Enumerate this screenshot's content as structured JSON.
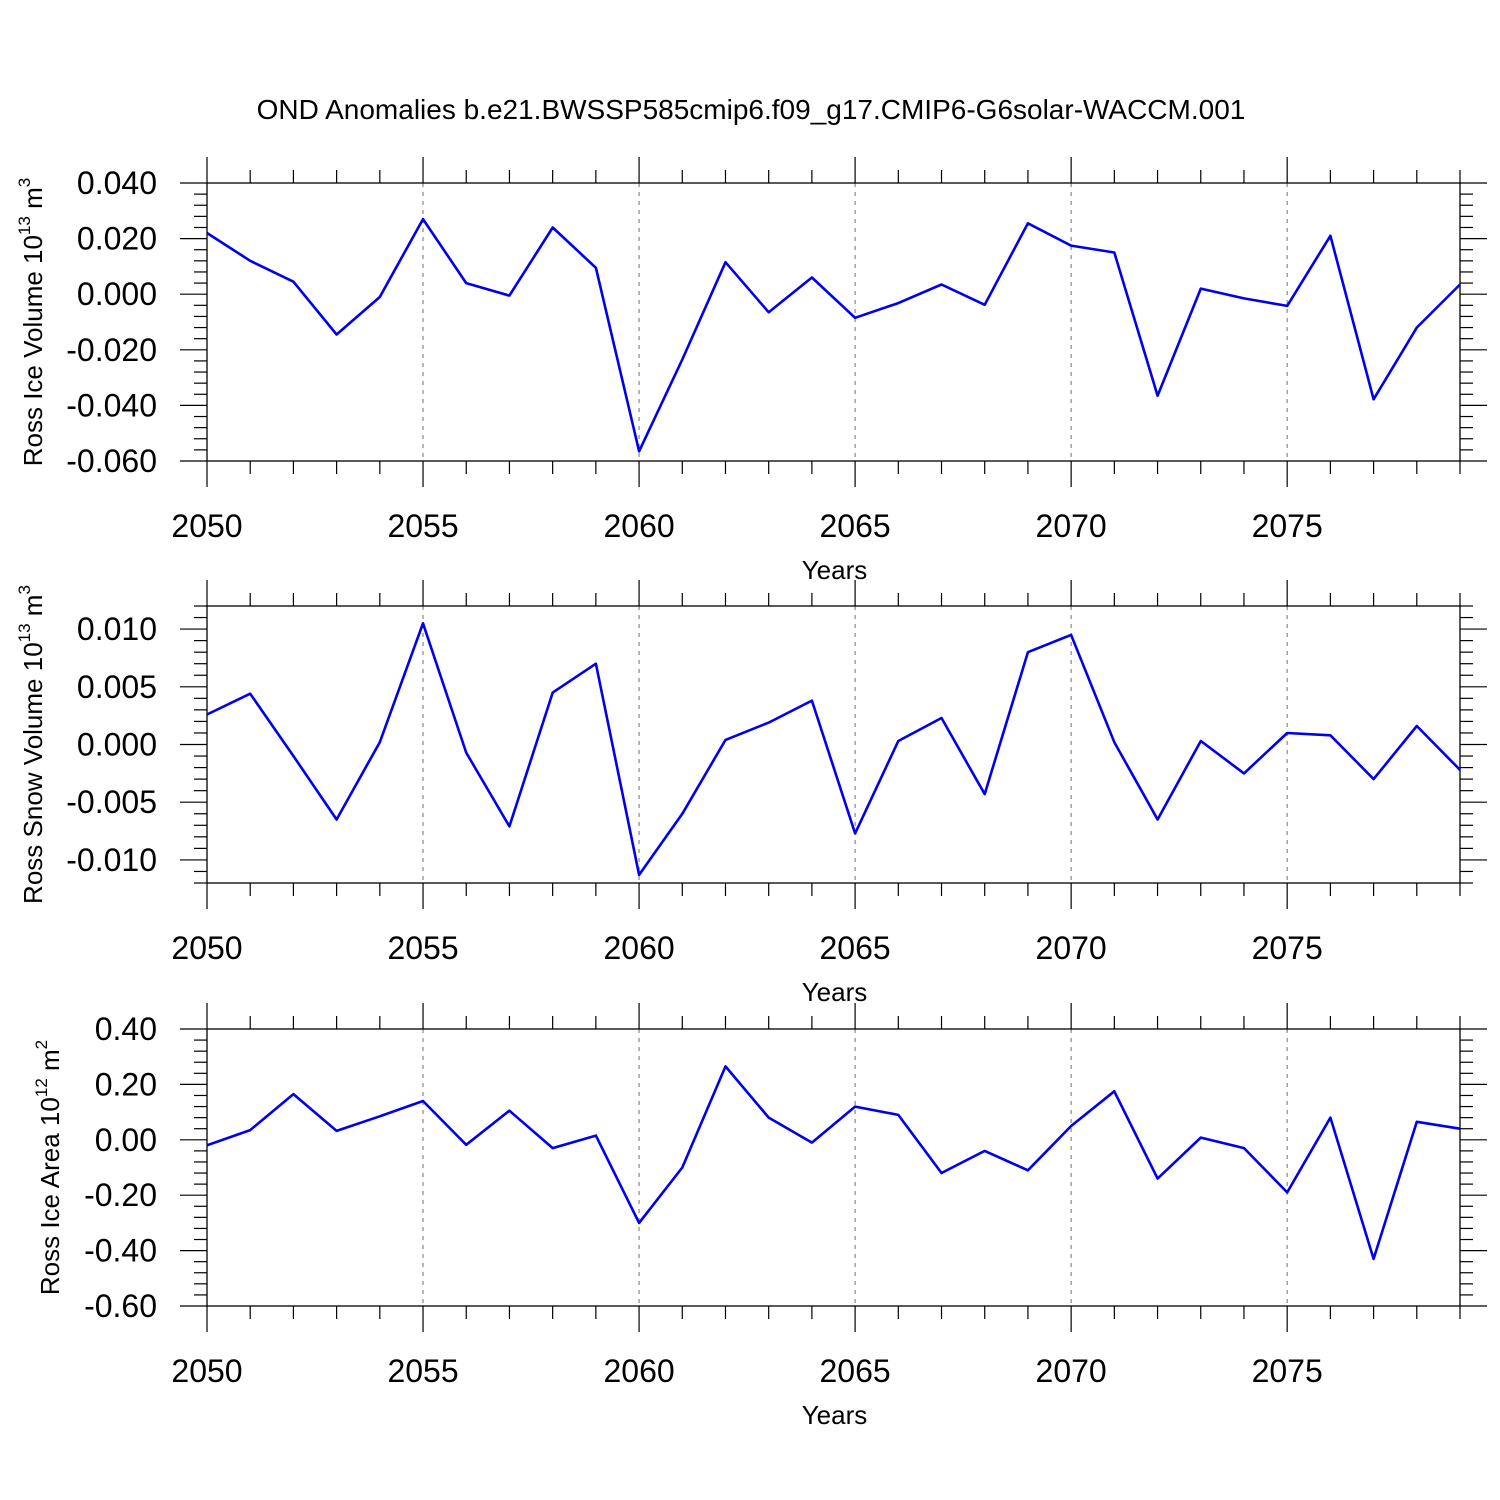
{
  "title": "OND Anomalies b.e21.BWSSP585cmip6.f09_g17.CMIP6-G6solar-WACCM.001",
  "chart_data": [
    {
      "type": "line",
      "xlabel": "Years",
      "ylabel": "Ross Ice Volume 10",
      "ylabel_exp": "13",
      "ylabel_unit": " m",
      "ylabel_unit_exp": "3",
      "xlim": [
        2050,
        2079
      ],
      "ylim": [
        -0.06,
        0.04
      ],
      "yticks": [
        -0.06,
        -0.04,
        -0.02,
        0.0,
        0.02,
        0.04
      ],
      "ytick_labels": [
        "-0.060",
        "-0.040",
        "-0.020",
        "0.000",
        "0.020",
        "0.040"
      ],
      "xticks": [
        2050,
        2055,
        2060,
        2065,
        2070,
        2075
      ],
      "xtick_labels": [
        "2050",
        "2055",
        "2060",
        "2065",
        "2070",
        "2075"
      ],
      "line_color": "#0000ee",
      "x": [
        2050,
        2051,
        2052,
        2053,
        2054,
        2055,
        2056,
        2057,
        2058,
        2059,
        2060,
        2061,
        2062,
        2063,
        2064,
        2065,
        2066,
        2067,
        2068,
        2069,
        2070,
        2071,
        2072,
        2073,
        2074,
        2075,
        2076,
        2077,
        2078,
        2079
      ],
      "values": [
        0.022,
        0.012,
        0.0045,
        -0.0145,
        -0.001,
        0.027,
        0.004,
        -0.0005,
        0.024,
        0.0095,
        -0.0565,
        -0.0235,
        0.0115,
        -0.0065,
        0.006,
        -0.0085,
        -0.0032,
        0.0035,
        -0.0038,
        0.0255,
        0.0175,
        0.015,
        -0.0365,
        0.002,
        -0.0015,
        -0.0042,
        0.021,
        -0.0378,
        -0.012,
        0.0035
      ]
    },
    {
      "type": "line",
      "xlabel": "Years",
      "ylabel": "Ross Snow Volume 10",
      "ylabel_exp": "13",
      "ylabel_unit": " m",
      "ylabel_unit_exp": "3",
      "xlim": [
        2050,
        2079
      ],
      "ylim": [
        -0.012,
        0.012
      ],
      "yticks": [
        -0.01,
        -0.005,
        0.0,
        0.005,
        0.01
      ],
      "ytick_labels": [
        "-0.010",
        "-0.005",
        "0.000",
        "0.005",
        "0.010"
      ],
      "xticks": [
        2050,
        2055,
        2060,
        2065,
        2070,
        2075
      ],
      "xtick_labels": [
        "2050",
        "2055",
        "2060",
        "2065",
        "2070",
        "2075"
      ],
      "line_color": "#0000ee",
      "x": [
        2050,
        2051,
        2052,
        2053,
        2054,
        2055,
        2056,
        2057,
        2058,
        2059,
        2060,
        2061,
        2062,
        2063,
        2064,
        2065,
        2066,
        2067,
        2068,
        2069,
        2070,
        2071,
        2072,
        2073,
        2074,
        2075,
        2076,
        2077,
        2078,
        2079
      ],
      "values": [
        0.0026,
        0.0044,
        -0.001,
        -0.0065,
        0.0002,
        0.0105,
        -0.0007,
        -0.0071,
        0.0045,
        0.007,
        -0.0113,
        -0.006,
        0.0004,
        0.0019,
        0.0038,
        -0.0077,
        0.0003,
        0.0023,
        -0.0043,
        0.008,
        0.0095,
        0.0002,
        -0.0065,
        0.0003,
        -0.0025,
        0.001,
        0.0008,
        -0.003,
        0.0016,
        -0.0022
      ]
    },
    {
      "type": "line",
      "xlabel": "Years",
      "ylabel": "Ross Ice Area 10",
      "ylabel_exp": "12",
      "ylabel_unit": " m",
      "ylabel_unit_exp": "2",
      "xlim": [
        2050,
        2079
      ],
      "ylim": [
        -0.6,
        0.4
      ],
      "yticks": [
        -0.6,
        -0.4,
        -0.2,
        0.0,
        0.2,
        0.4
      ],
      "ytick_labels": [
        "-0.60",
        "-0.40",
        "-0.20",
        "0.00",
        "0.20",
        "0.40"
      ],
      "xticks": [
        2050,
        2055,
        2060,
        2065,
        2070,
        2075
      ],
      "xtick_labels": [
        "2050",
        "2055",
        "2060",
        "2065",
        "2070",
        "2075"
      ],
      "line_color": "#0000ee",
      "x": [
        2050,
        2051,
        2052,
        2053,
        2054,
        2055,
        2056,
        2057,
        2058,
        2059,
        2060,
        2061,
        2062,
        2063,
        2064,
        2065,
        2066,
        2067,
        2068,
        2069,
        2070,
        2071,
        2072,
        2073,
        2074,
        2075,
        2076,
        2077,
        2078,
        2079
      ],
      "values": [
        -0.02,
        0.035,
        0.165,
        0.032,
        0.085,
        0.14,
        -0.018,
        0.105,
        -0.03,
        0.015,
        -0.3,
        -0.1,
        0.265,
        0.08,
        -0.01,
        0.12,
        0.09,
        -0.12,
        -0.04,
        -0.11,
        0.05,
        0.175,
        -0.14,
        0.008,
        -0.03,
        -0.19,
        0.08,
        -0.43,
        0.065,
        0.04
      ]
    }
  ]
}
